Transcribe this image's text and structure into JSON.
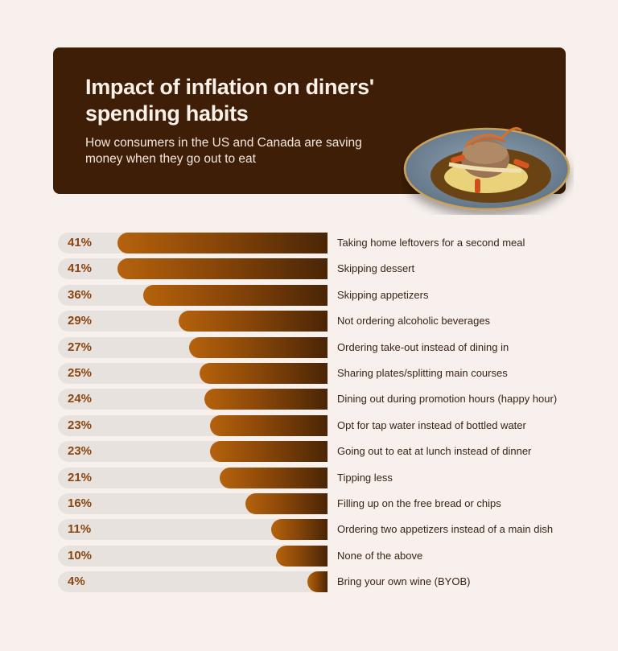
{
  "header": {
    "title": "Impact of inflation on diners' spending habits",
    "subtitle": "How consumers in the US and Canada are saving money when they go out to eat",
    "image": "plated-dish-photo",
    "background_color": "#3e1e06"
  },
  "colors": {
    "page_background": "#f7f0ed",
    "track": "#e8e2df",
    "bar_gradient_start": "#b5620c",
    "bar_gradient_end": "#4a2506",
    "percent_text": "#8a4510",
    "label_text": "#3a2414"
  },
  "rows": [
    {
      "pct": "41%",
      "value": 41,
      "label": "Taking home leftovers for a second meal"
    },
    {
      "pct": "41%",
      "value": 41,
      "label": "Skipping dessert"
    },
    {
      "pct": "36%",
      "value": 36,
      "label": "Skipping appetizers"
    },
    {
      "pct": "29%",
      "value": 29,
      "label": "Not ordering alcoholic beverages"
    },
    {
      "pct": "27%",
      "value": 27,
      "label": "Ordering take-out instead of dining in"
    },
    {
      "pct": "25%",
      "value": 25,
      "label": "Sharing plates/splitting main courses"
    },
    {
      "pct": "24%",
      "value": 24,
      "label": "Dining out during promotion hours (happy hour)"
    },
    {
      "pct": "23%",
      "value": 23,
      "label": "Opt for tap water instead of bottled water"
    },
    {
      "pct": "23%",
      "value": 23,
      "label": "Going out to eat at lunch instead of dinner"
    },
    {
      "pct": "21%",
      "value": 21,
      "label": "Tipping less"
    },
    {
      "pct": "16%",
      "value": 16,
      "label": "Filling up on the free bread or chips"
    },
    {
      "pct": "11%",
      "value": 11,
      "label": "Ordering two appetizers instead of a main dish"
    },
    {
      "pct": "10%",
      "value": 10,
      "label": "None of the above"
    },
    {
      "pct": "4%",
      "value": 4,
      "label": "Bring your own wine (BYOB)"
    }
  ],
  "chart_data": {
    "type": "bar",
    "orientation": "horizontal",
    "title": "Impact of inflation on diners' spending habits",
    "subtitle": "How consumers in the US and Canada are saving money when they go out to eat",
    "categories": [
      "Taking home leftovers for a second meal",
      "Skipping dessert",
      "Skipping appetizers",
      "Not ordering alcoholic beverages",
      "Ordering take-out instead of dining in",
      "Sharing plates/splitting main courses",
      "Dining out during promotion hours (happy hour)",
      "Opt for tap water instead of bottled water",
      "Going out to eat at lunch instead of dinner",
      "Tipping less",
      "Filling up on the free bread or chips",
      "Ordering two appetizers instead of a main dish",
      "None of the above",
      "Bring your own wine (BYOB)"
    ],
    "values": [
      41,
      41,
      36,
      29,
      27,
      25,
      24,
      23,
      23,
      21,
      16,
      11,
      10,
      4
    ],
    "unit": "%",
    "xlabel": "",
    "ylabel": "",
    "grid": false,
    "legend": "none"
  }
}
